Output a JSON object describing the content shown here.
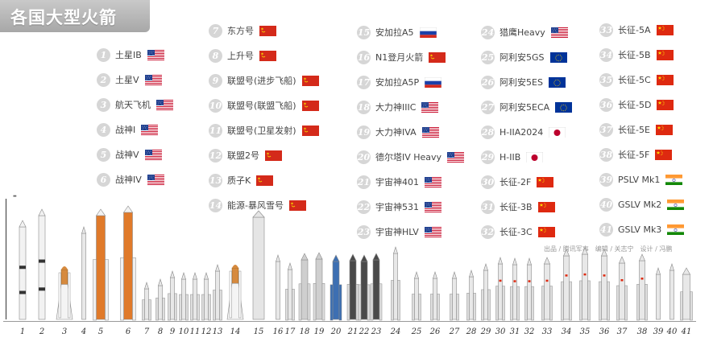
{
  "title": "各国大型火箭",
  "credits": "出品 / 腾讯军事　编辑 / 关志宁　设计 / 冯鹏",
  "colors": {
    "title_bg": "#b8b8b8",
    "circle": "#d6d6d6"
  },
  "legend": [
    {
      "num": "1",
      "name": "土星IB",
      "flag": "usa-flag"
    },
    {
      "num": "2",
      "name": "土星V",
      "flag": "usa-flag"
    },
    {
      "num": "3",
      "name": "航天飞机",
      "flag": "usa-flag"
    },
    {
      "num": "4",
      "name": "战神I",
      "flag": "usa-flag"
    },
    {
      "num": "5",
      "name": "战神V",
      "flag": "usa-flag"
    },
    {
      "num": "6",
      "name": "战神IV",
      "flag": "usa-flag"
    },
    {
      "num": "7",
      "name": "东方号",
      "flag": "ussr-flag"
    },
    {
      "num": "8",
      "name": "上升号",
      "flag": "ussr-flag"
    },
    {
      "num": "9",
      "name": "联盟号(进步飞船)",
      "flag": "ussr-flag"
    },
    {
      "num": "10",
      "name": "联盟号(联盟飞船)",
      "flag": "ussr-flag"
    },
    {
      "num": "11",
      "name": "联盟号(卫星发射)",
      "flag": "ussr-flag"
    },
    {
      "num": "12",
      "name": "联盟2号",
      "flag": "ussr-flag"
    },
    {
      "num": "13",
      "name": "质子K",
      "flag": "ussr-flag"
    },
    {
      "num": "14",
      "name": "能源-暴风雪号",
      "flag": "ussr-flag"
    },
    {
      "num": "15",
      "name": "安加拉A5",
      "flag": "russia-flag"
    },
    {
      "num": "16",
      "name": "N1登月火箭",
      "flag": "ussr-flag"
    },
    {
      "num": "17",
      "name": "安加拉A5P",
      "flag": "russia-flag"
    },
    {
      "num": "18",
      "name": "大力神IIIC",
      "flag": "usa-flag"
    },
    {
      "num": "19",
      "name": "大力神IVA",
      "flag": "usa-flag"
    },
    {
      "num": "20",
      "name": "德尔塔IV Heavy",
      "flag": "usa-flag"
    },
    {
      "num": "21",
      "name": "宇宙神401",
      "flag": "usa-flag"
    },
    {
      "num": "22",
      "name": "宇宙神531",
      "flag": "usa-flag"
    },
    {
      "num": "23",
      "name": "宇宙神HLV",
      "flag": "usa-flag"
    },
    {
      "num": "24",
      "name": "猎鹰Heavy",
      "flag": "usa-flag"
    },
    {
      "num": "25",
      "name": "阿利安5GS",
      "flag": "eu-flag"
    },
    {
      "num": "26",
      "name": "阿利安5ES",
      "flag": "eu-flag"
    },
    {
      "num": "27",
      "name": "阿利安5ECA",
      "flag": "eu-flag"
    },
    {
      "num": "28",
      "name": "H-IIA2024",
      "flag": "japan-flag"
    },
    {
      "num": "29",
      "name": "H-IIB",
      "flag": "japan-flag"
    },
    {
      "num": "30",
      "name": "长征-2F",
      "flag": "china-flag"
    },
    {
      "num": "31",
      "name": "长征-3B",
      "flag": "china-flag"
    },
    {
      "num": "32",
      "name": "长征-3C",
      "flag": "china-flag"
    },
    {
      "num": "33",
      "name": "长征-5A",
      "flag": "china-flag"
    },
    {
      "num": "34",
      "name": "长征-5B",
      "flag": "china-flag"
    },
    {
      "num": "35",
      "name": "长征-5C",
      "flag": "china-flag"
    },
    {
      "num": "36",
      "name": "长征-5D",
      "flag": "china-flag"
    },
    {
      "num": "37",
      "name": "长征-5E",
      "flag": "china-flag"
    },
    {
      "num": "38",
      "name": "长征-5F",
      "flag": "china-flag"
    },
    {
      "num": "39",
      "name": "PSLV Mk1",
      "flag": "india-flag"
    },
    {
      "num": "40",
      "name": "GSLV Mk2",
      "flag": "india-flag"
    },
    {
      "num": "41",
      "name": "GSLV Mk3",
      "flag": "india-flag"
    }
  ],
  "rocket_numbers": [
    "1",
    "2",
    "3",
    "4",
    "5",
    "6",
    "7",
    "8",
    "9",
    "10",
    "11",
    "12",
    "13",
    "14",
    "15",
    "16",
    "17",
    "18",
    "19",
    "20",
    "21",
    "22",
    "23",
    "24",
    "25",
    "26",
    "27",
    "28",
    "29",
    "30",
    "31",
    "32",
    "33",
    "34",
    "35",
    "36",
    "37",
    "38",
    "39",
    "40",
    "41"
  ]
}
